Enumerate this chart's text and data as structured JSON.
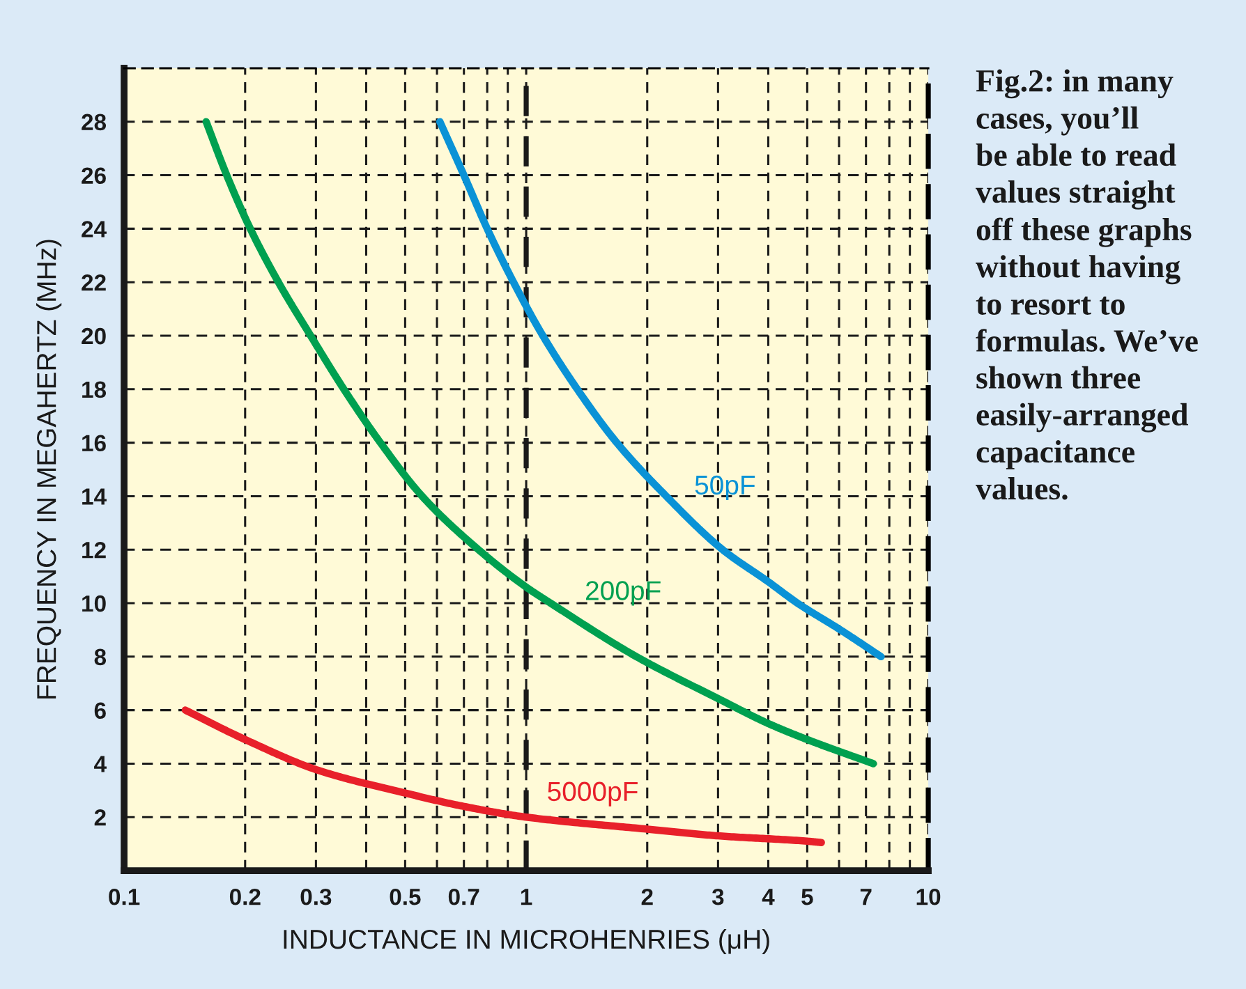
{
  "chart_data": {
    "type": "line",
    "xlabel": "INDUCTANCE IN MICROHENRIES (μH)",
    "ylabel": "FREQUENCY IN MEGAHERTZ (MHz)",
    "annotations": [
      "Fig.2: in many\ncases, you’ll\nbe able to read\nvalues straight\noff these graphs\nwithout having\nto resort to\nformulas. We’ve\nshown three\neasily-arranged\ncapacitance\nvalues."
    ],
    "log": "x",
    "xlim": [
      0.1,
      10
    ],
    "xticks": [
      0.1,
      0.2,
      0.3,
      {
        "value": 0.4,
        "label": null
      },
      0.5,
      {
        "value": 0.6,
        "label": null
      },
      0.7,
      {
        "value": 0.8,
        "label": null
      },
      {
        "value": 0.9,
        "label": null
      },
      1,
      2,
      3,
      4,
      5,
      {
        "value": 6,
        "label": null
      },
      7,
      {
        "value": 8,
        "label": null
      },
      {
        "value": 9,
        "label": null
      },
      10
    ],
    "ylim": [
      0,
      30
    ],
    "yticks": [
      2,
      4,
      6,
      8,
      10,
      12,
      14,
      16,
      18,
      20,
      22,
      24,
      26,
      28
    ],
    "grid": true,
    "marker": "none",
    "line_style": "solid",
    "ref_lines": [
      {
        "axis": "x",
        "value": 1,
        "line_style": "dashed",
        "color": "#1a1a1a"
      }
    ],
    "series": [
      {
        "name": "50pF",
        "color": "#0a92d6",
        "x": [
          0.61,
          0.7,
          0.8,
          0.93,
          1.1,
          1.34,
          1.68,
          2.23,
          3.08,
          4.0,
          4.73,
          6.05,
          7.63
        ],
        "values": [
          28,
          26,
          24,
          22,
          20,
          18,
          16,
          14,
          12,
          10.8,
          10,
          9.0,
          8.0
        ]
      },
      {
        "name": "200pF",
        "color": "#00a050",
        "x": [
          0.16,
          0.18,
          0.206,
          0.242,
          0.291,
          0.352,
          0.434,
          0.551,
          0.761,
          1.0,
          1.15,
          1.88,
          3.03,
          4.0,
          5.0,
          7.3
        ],
        "values": [
          28,
          26,
          24,
          22,
          20,
          18,
          16,
          14,
          12,
          10.6,
          10,
          8,
          6.4,
          5.5,
          4.9,
          4.0
        ]
      },
      {
        "name": "5000pF",
        "color": "#e8202a",
        "x": [
          0.142,
          0.2,
          0.304,
          0.5,
          0.7,
          1.0,
          2.0,
          3.0,
          5.0,
          5.42
        ],
        "values": [
          6.0,
          4.9,
          3.75,
          2.9,
          2.4,
          2.0,
          1.55,
          1.3,
          1.1,
          1.05
        ]
      }
    ]
  }
}
